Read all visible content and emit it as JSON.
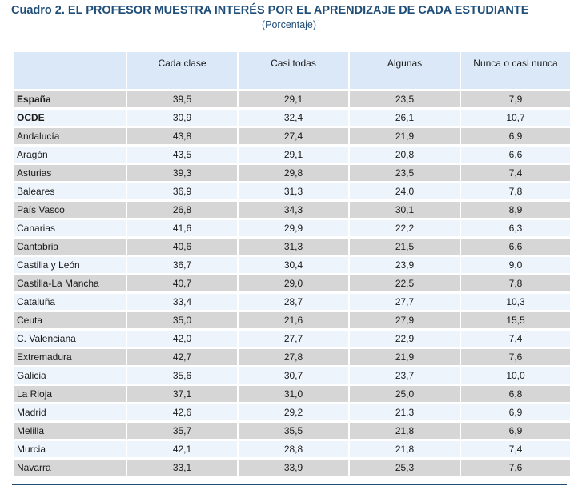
{
  "title": "Cuadro 2. EL PROFESOR MUESTRA INTERÉS POR EL APRENDIZAJE DE CADA ESTUDIANTE",
  "subtitle": "(Porcentaje)",
  "table": {
    "columns": [
      "",
      "Cada clase",
      "Casi todas",
      "Algunas",
      "Nunca o casi nunca"
    ],
    "rows": [
      {
        "region": "España",
        "values": [
          "39,5",
          "29,1",
          "23,5",
          "7,9"
        ],
        "bold": true
      },
      {
        "region": "OCDE",
        "values": [
          "30,9",
          "32,4",
          "26,1",
          "10,7"
        ],
        "bold": true
      },
      {
        "region": "Andalucía",
        "values": [
          "43,8",
          "27,4",
          "21,9",
          "6,9"
        ]
      },
      {
        "region": "Aragón",
        "values": [
          "43,5",
          "29,1",
          "20,8",
          "6,6"
        ]
      },
      {
        "region": "Asturias",
        "values": [
          "39,3",
          "29,8",
          "23,5",
          "7,4"
        ]
      },
      {
        "region": "Baleares",
        "values": [
          "36,9",
          "31,3",
          "24,0",
          "7,8"
        ]
      },
      {
        "region": "País Vasco",
        "values": [
          "26,8",
          "34,3",
          "30,1",
          "8,9"
        ]
      },
      {
        "region": "Canarias",
        "values": [
          "41,6",
          "29,9",
          "22,2",
          "6,3"
        ]
      },
      {
        "region": "Cantabria",
        "values": [
          "40,6",
          "31,3",
          "21,5",
          "6,6"
        ]
      },
      {
        "region": "Castilla y León",
        "values": [
          "36,7",
          "30,4",
          "23,9",
          "9,0"
        ]
      },
      {
        "region": "Castilla-La Mancha",
        "values": [
          "40,7",
          "29,0",
          "22,5",
          "7,8"
        ]
      },
      {
        "region": "Cataluña",
        "values": [
          "33,4",
          "28,7",
          "27,7",
          "10,3"
        ]
      },
      {
        "region": "Ceuta",
        "values": [
          "35,0",
          "21,6",
          "27,9",
          "15,5"
        ]
      },
      {
        "region": "C. Valenciana",
        "values": [
          "42,0",
          "27,7",
          "22,9",
          "7,4"
        ]
      },
      {
        "region": "Extremadura",
        "values": [
          "42,7",
          "27,8",
          "21,9",
          "7,6"
        ]
      },
      {
        "region": "Galicia",
        "values": [
          "35,6",
          "30,7",
          "23,7",
          "10,0"
        ]
      },
      {
        "region": "La Rioja",
        "values": [
          "37,1",
          "31,0",
          "25,0",
          "6,8"
        ]
      },
      {
        "region": "Madrid",
        "values": [
          "42,6",
          "29,2",
          "21,3",
          "6,9"
        ]
      },
      {
        "region": "Melilla",
        "values": [
          "35,7",
          "35,5",
          "21,8",
          "6,9"
        ]
      },
      {
        "region": "Murcia",
        "values": [
          "42,1",
          "28,8",
          "21,8",
          "7,4"
        ]
      },
      {
        "region": "Navarra",
        "values": [
          "33,1",
          "33,9",
          "25,3",
          "7,6"
        ]
      }
    ]
  },
  "colors": {
    "title": "#1f4e79",
    "header_bg": "#dbe8f7",
    "row_shaded": "#d6d6d6",
    "row_light": "#eef4fb"
  }
}
